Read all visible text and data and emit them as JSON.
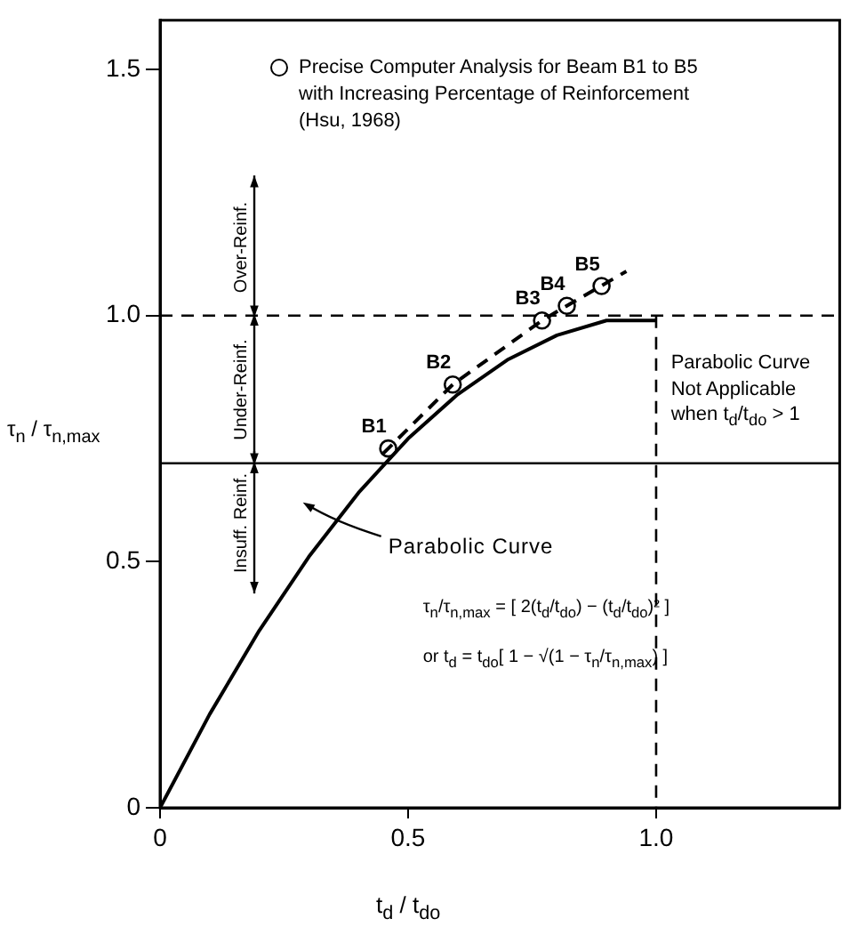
{
  "chart_data": {
    "type": "line",
    "xlabel": "t$_{d}$ / t$_{do}$",
    "ylabel": "τ$_{n}$ / τ$_{n,max}$",
    "xlim": [
      0,
      1.37
    ],
    "ylim": [
      0,
      1.6
    ],
    "xticks": [
      0,
      0.5,
      {
        "value": 1,
        "label": "1.0"
      }
    ],
    "yticks": [
      0,
      0.5,
      {
        "value": 1,
        "label": "1.0"
      },
      1.5
    ],
    "series": [
      {
        "color": "#000000",
        "marker": "none",
        "line_style": "solid",
        "x": [
          0,
          0.1,
          0.2,
          0.3,
          0.4,
          0.5,
          0.6,
          0.7,
          0.8,
          0.9,
          1.0
        ],
        "values": [
          0,
          0.19,
          0.36,
          0.51,
          0.64,
          0.75,
          0.84,
          0.91,
          0.96,
          0.99,
          0.99
        ]
      },
      {
        "color": "#000000",
        "marker": "none",
        "line_style": "dashed",
        "x": [
          0.45,
          0.59,
          0.77,
          0.82,
          0.94
        ],
        "values": [
          0.72,
          0.86,
          0.99,
          1.02,
          1.09
        ]
      },
      {
        "type": "scatter",
        "name": "Precise Computer Analysis for Beam B1 to B5 with Increasing Percentage of Reinforcement (Hsu, 1968)",
        "color": "#000000",
        "marker": "circle",
        "x": [
          0.46,
          0.59,
          0.77,
          0.82,
          0.89
        ],
        "values": [
          0.73,
          0.86,
          0.99,
          1.02,
          1.06
        ],
        "value_labels": [
          "B1",
          "B2",
          "B3",
          "B4",
          "B5"
        ]
      }
    ],
    "ref_lines": [
      {
        "axis": "y",
        "value": 1.0,
        "line_style": "dashed",
        "color": "#000000"
      },
      {
        "axis": "x",
        "value": 1.0,
        "line_style": "dashed",
        "color": "#000000"
      },
      {
        "axis": "y",
        "value": 0.7,
        "line_style": "solid",
        "color": "#000000"
      }
    ],
    "annotations": [
      "Parabolic Curve",
      "τ$_{n}$/τ$_{n,max}$ = [ 2(t$_{d}$/t$_{do}$) − (t$_{d}$/t$_{do}$)² ]",
      "or t$_{d}$ = t$_{do}$[ 1 − √(1 − τ$_{n}$/τ$_{n,max}$) ]",
      "Parabolic Curve Not Applicable when t$_{d}$/t$_{do}$ > 1",
      "Over-Reinf.",
      "Under-Reinf.",
      "Insuff. Reinf."
    ],
    "legend": "top"
  }
}
